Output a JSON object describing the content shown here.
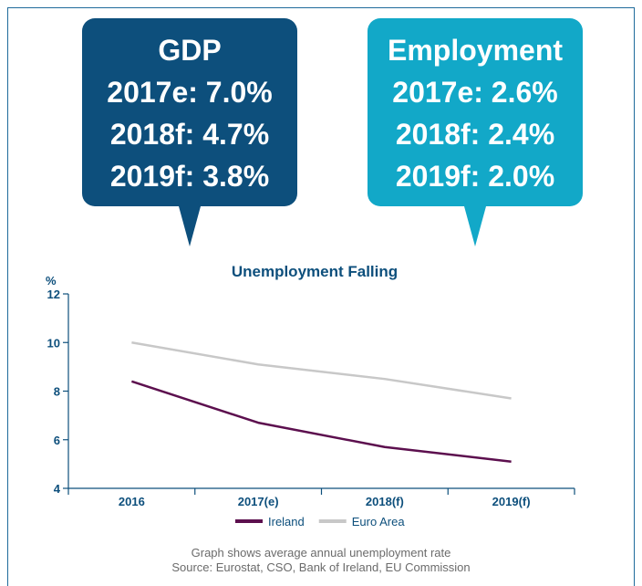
{
  "gdp": {
    "title": "GDP",
    "lines": [
      "2017e: 7.0%",
      "2018f: 4.7%",
      "2019f: 3.8%"
    ],
    "color": "#0d4f7c"
  },
  "employment": {
    "title": "Employment",
    "lines": [
      "2017e: 2.6%",
      "2018f: 2.4%",
      "2019f: 2.0%"
    ],
    "color": "#12a8c8"
  },
  "chart_data": {
    "type": "line",
    "title": "Unemployment Falling",
    "ylabel": "%",
    "xlabel": "",
    "categories": [
      "2016",
      "2017(e)",
      "2018(f)",
      "2019(f)"
    ],
    "ylim": [
      4,
      12
    ],
    "yticks": [
      4,
      6,
      8,
      10,
      12
    ],
    "grid": false,
    "legend_position": "bottom",
    "series": [
      {
        "name": "Ireland",
        "values": [
          8.4,
          6.7,
          5.7,
          5.1
        ],
        "color": "#5c0f4e"
      },
      {
        "name": "Euro Area",
        "values": [
          10.0,
          9.1,
          8.5,
          7.7
        ],
        "color": "#c8c8c8"
      }
    ]
  },
  "footnote": {
    "line1": "Graph shows average annual unemployment rate",
    "line2": "Source: Eurostat, CSO, Bank of Ireland, EU Commission"
  }
}
